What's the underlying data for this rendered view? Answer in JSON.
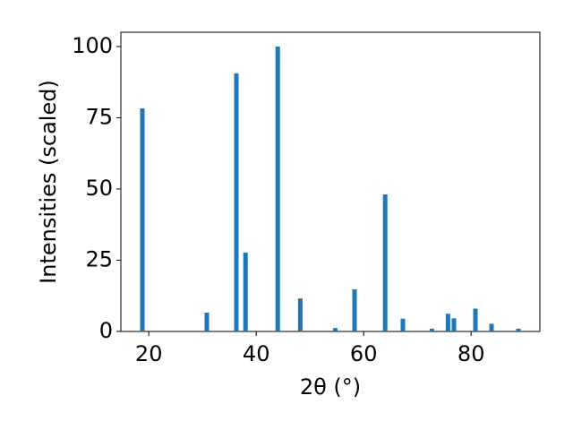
{
  "chart_data": {
    "type": "bar",
    "xlabel": "2θ (°)",
    "ylabel": "Intensities (scaled)",
    "x": [
      18.8,
      30.8,
      36.3,
      38.0,
      44.0,
      48.2,
      54.7,
      58.3,
      64.0,
      67.3,
      72.7,
      75.7,
      76.8,
      80.8,
      83.8,
      88.8
    ],
    "values": [
      78.3,
      6.6,
      90.6,
      27.7,
      100,
      11.6,
      1.2,
      14.8,
      48.1,
      4.5,
      1,
      6.2,
      4.6,
      8,
      2.7,
      1
    ],
    "color": "#1f77b4",
    "xlim": [
      14.8,
      92.8
    ],
    "xticks": [
      20,
      40,
      60,
      80
    ],
    "ylim": [
      0,
      105
    ],
    "yticks": [
      0,
      25,
      50,
      75,
      100
    ]
  }
}
